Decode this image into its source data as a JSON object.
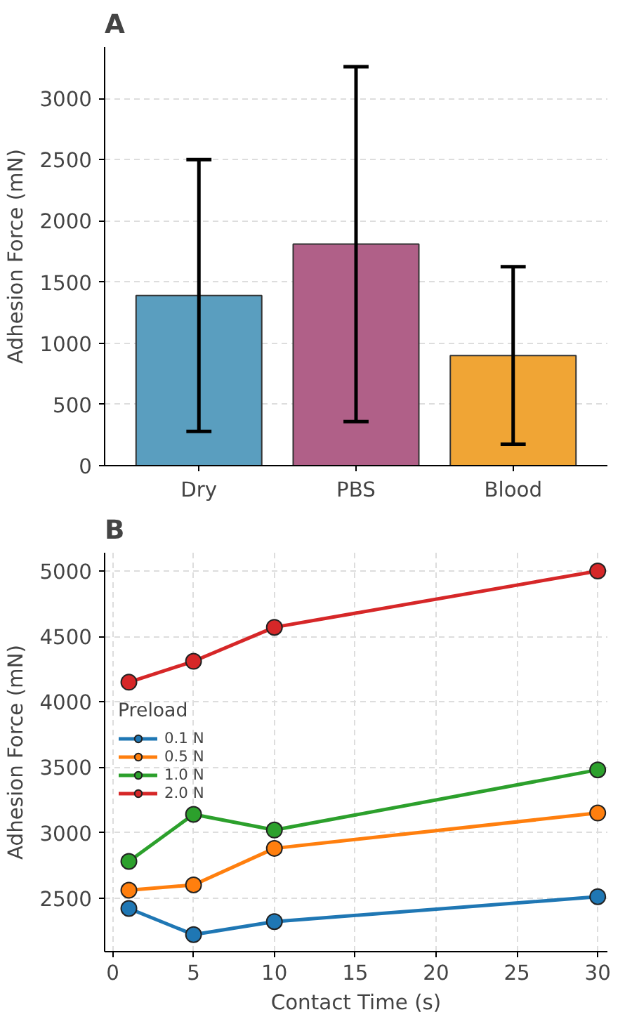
{
  "chart_data": [
    {
      "type": "bar",
      "title": "A",
      "ylabel": "Adhesion Force (mN)",
      "categories": [
        "Dry",
        "PBS",
        "Blood"
      ],
      "values": [
        1390,
        1810,
        900
      ],
      "colors": [
        "#5a9ebf",
        "#b06088",
        "#f0a535"
      ],
      "errors": [
        1110,
        1450,
        725
      ],
      "ylim": [
        0,
        3420
      ],
      "yticks": [
        0,
        500,
        1000,
        1500,
        2000,
        2500,
        3000
      ],
      "grid": "y"
    },
    {
      "type": "line",
      "title": "B",
      "xlabel": "Contact Time (s)",
      "ylabel": "Adhesion Force (mN)",
      "legend_title": "Preload",
      "x": [
        1,
        5,
        10,
        30
      ],
      "series": [
        {
          "name": "0.1 N",
          "color": "#1f77b4",
          "values": [
            2420,
            2220,
            2320,
            2510
          ]
        },
        {
          "name": "0.5 N",
          "color": "#ff7f0e",
          "values": [
            2560,
            2600,
            2880,
            3150
          ]
        },
        {
          "name": "1.0 N",
          "color": "#2ca02c",
          "values": [
            2780,
            3140,
            3020,
            3480
          ]
        },
        {
          "name": "2.0 N",
          "color": "#d62728",
          "values": [
            4150,
            4310,
            4570,
            5000
          ]
        }
      ],
      "xlim": [
        -0.5,
        30.6
      ],
      "xticks": [
        0,
        5,
        10,
        15,
        20,
        25,
        30
      ],
      "ylim": [
        2090,
        5140
      ],
      "yticks": [
        2500,
        3000,
        3500,
        4000,
        4500,
        5000
      ],
      "grid": true,
      "legend": "left",
      "marker": "circle",
      "line_style": "solid"
    }
  ]
}
